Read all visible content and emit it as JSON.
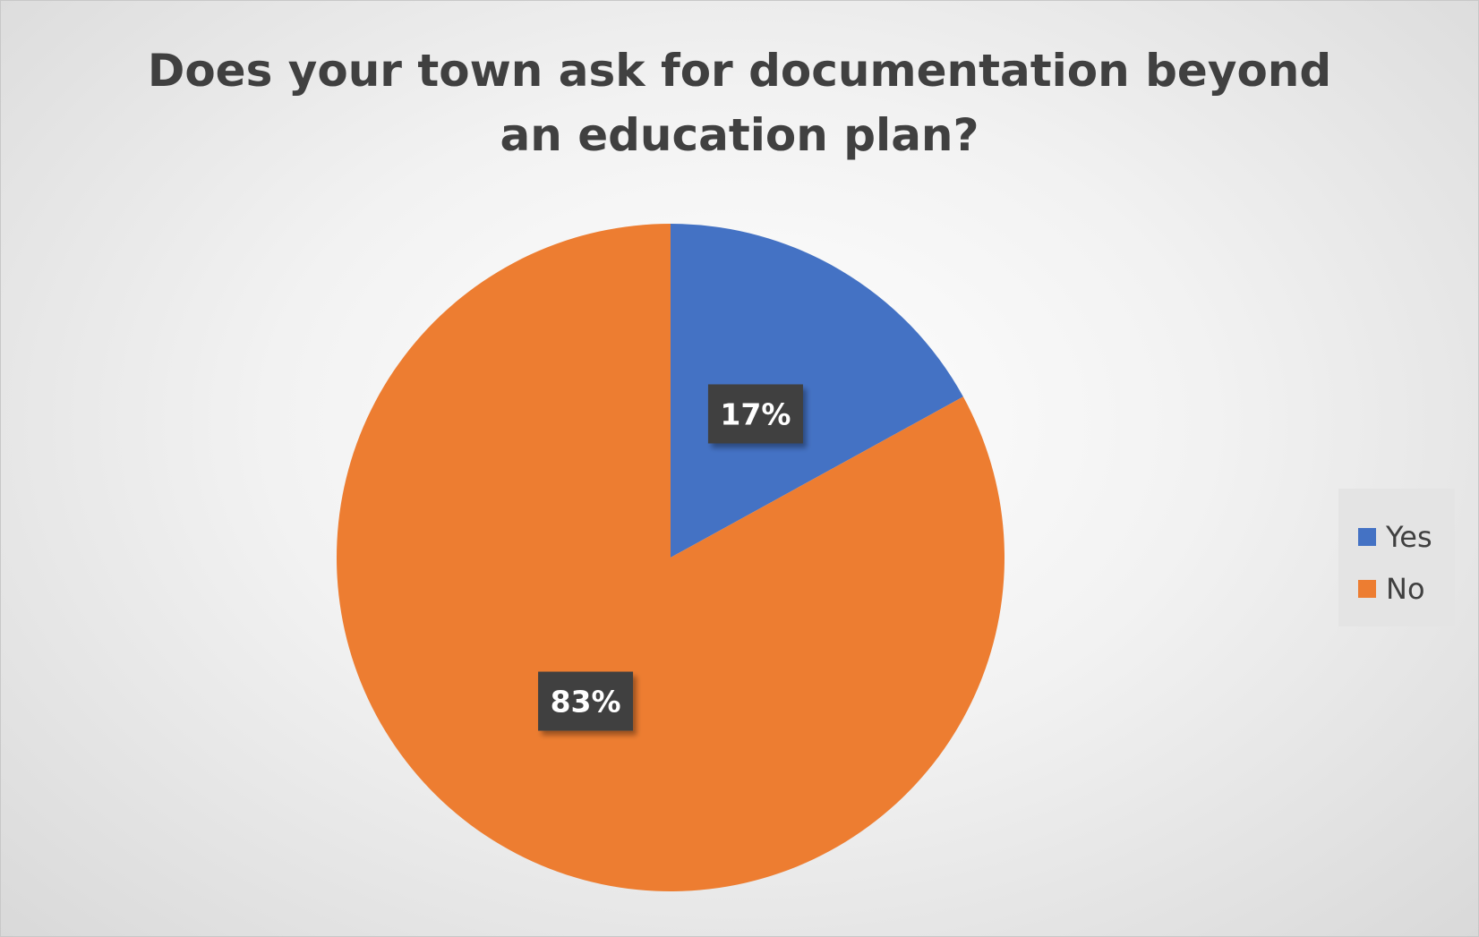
{
  "chart_data": {
    "type": "pie",
    "title": "Does your town ask for documentation beyond an education plan?",
    "categories": [
      "Yes",
      "No"
    ],
    "values": [
      17,
      83
    ],
    "data_labels": [
      "17%",
      "83%"
    ],
    "colors": [
      "#4472C4",
      "#ED7D31"
    ],
    "legend": {
      "position": "right",
      "entries": [
        "Yes",
        "No"
      ]
    }
  }
}
